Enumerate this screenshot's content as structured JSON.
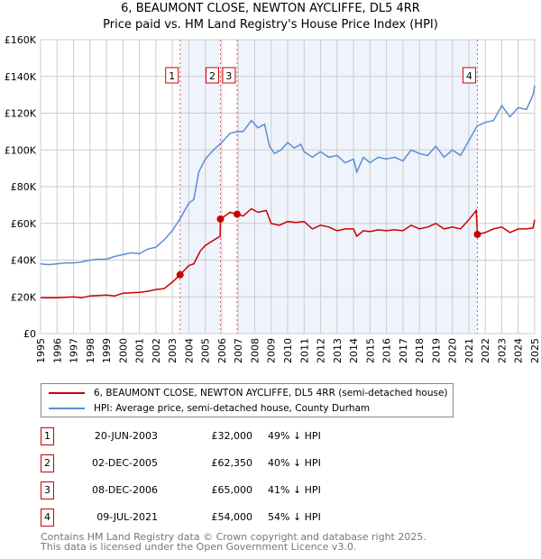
{
  "title_line1": "6, BEAUMONT CLOSE, NEWTON AYCLIFFE, DL5 4RR",
  "title_line2": "Price paid vs. HM Land Registry's House Price Index (HPI)",
  "colors": {
    "property": "#cc0000",
    "hpi": "#5b8fd1",
    "shade": "#eef3fc",
    "grid": "#cccccc"
  },
  "chart_data": {
    "type": "line",
    "title": "Price paid vs. HM Land Registry's House Price Index (HPI)",
    "xlim": [
      1995,
      2025
    ],
    "ylim": [
      0,
      160000
    ],
    "y_ticks": [
      0,
      20000,
      40000,
      60000,
      80000,
      100000,
      120000,
      140000,
      160000
    ],
    "y_tick_labels": [
      "£0",
      "£20K",
      "£40K",
      "£60K",
      "£80K",
      "£100K",
      "£120K",
      "£140K",
      "£160K"
    ],
    "x_ticks": [
      1995,
      1996,
      1997,
      1998,
      1999,
      2000,
      2001,
      2002,
      2003,
      2004,
      2005,
      2006,
      2007,
      2008,
      2009,
      2010,
      2011,
      2012,
      2013,
      2014,
      2015,
      2016,
      2017,
      2018,
      2019,
      2020,
      2021,
      2022,
      2023,
      2024,
      2025
    ],
    "x_tick_labels": [
      "1995",
      "1996",
      "1997",
      "1998",
      "1999",
      "2000",
      "2001",
      "2002",
      "2003",
      "2004",
      "2005",
      "2006",
      "2007",
      "2008",
      "2009",
      "2010",
      "2011",
      "2012",
      "2013",
      "2014",
      "2015",
      "2016",
      "2017",
      "2018",
      "2019",
      "2020",
      "2021",
      "2022",
      "2023",
      "2024",
      "2025"
    ],
    "grid": true,
    "legend_placement": "below",
    "series": [
      {
        "name": "6, BEAUMONT CLOSE, NEWTON AYCLIFFE, DL5 4RR (semi-detached house)",
        "x": [
          1995,
          1996,
          1997,
          1997.5,
          1998,
          1999,
          1999.5,
          2000,
          2001,
          2001.5,
          2002,
          2002.5,
          2003,
          2003.47,
          2004,
          2004.3,
          2004.7,
          2005,
          2005.9,
          2005.92,
          2006.5,
          2006.93,
          2007.3,
          2007.8,
          2008.2,
          2008.7,
          2009,
          2009.5,
          2010,
          2010.5,
          2011,
          2011.5,
          2012,
          2012.5,
          2013,
          2013.5,
          2014,
          2014.2,
          2014.6,
          2015,
          2015.5,
          2016,
          2016.5,
          2017,
          2017.5,
          2018,
          2018.5,
          2019,
          2019.5,
          2020,
          2020.5,
          2021,
          2021.45,
          2021.52,
          2022,
          2022.5,
          2023,
          2023.5,
          2024,
          2024.5,
          2024.9,
          2025
        ],
        "y": [
          19500,
          19500,
          20000,
          19500,
          20500,
          21000,
          20500,
          22000,
          22500,
          23000,
          24000,
          24500,
          28000,
          32000,
          37000,
          38000,
          45000,
          48000,
          53000,
          62350,
          66000,
          65000,
          64000,
          68000,
          66000,
          67000,
          60000,
          59000,
          61000,
          60500,
          61000,
          57000,
          59000,
          58000,
          56000,
          57000,
          57000,
          53000,
          56000,
          55500,
          56500,
          56000,
          56500,
          56000,
          59000,
          57000,
          58000,
          60000,
          57000,
          58000,
          57000,
          62000,
          67000,
          54000,
          55000,
          57000,
          58000,
          55000,
          57000,
          57000,
          57500,
          62000
        ]
      },
      {
        "name": "HPI: Average price, semi-detached house, County Durham",
        "x": [
          1995,
          1995.5,
          1996,
          1996.5,
          1997,
          1997.5,
          1998,
          1998.5,
          1999,
          1999.5,
          2000,
          2000.5,
          2001,
          2001.5,
          2002,
          2002.5,
          2003,
          2003.5,
          2004,
          2004.3,
          2004.6,
          2005,
          2005.5,
          2006,
          2006.5,
          2007,
          2007.3,
          2007.8,
          2008.2,
          2008.6,
          2008.9,
          2009.2,
          2009.6,
          2010,
          2010.4,
          2010.8,
          2011,
          2011.5,
          2012,
          2012.5,
          2013,
          2013.5,
          2014,
          2014.2,
          2014.6,
          2015,
          2015.5,
          2016,
          2016.5,
          2017,
          2017.5,
          2018,
          2018.5,
          2019,
          2019.5,
          2020,
          2020.5,
          2021,
          2021.5,
          2022,
          2022.5,
          2023,
          2023.5,
          2024,
          2024.5,
          2024.9,
          2025
        ],
        "y": [
          38000,
          37500,
          38000,
          38500,
          38500,
          39000,
          40000,
          40500,
          40500,
          42000,
          43000,
          44000,
          43500,
          46000,
          47000,
          51000,
          56000,
          63000,
          71000,
          73000,
          88000,
          95000,
          100000,
          104000,
          109000,
          110000,
          110000,
          116000,
          112000,
          114000,
          102000,
          98000,
          100000,
          104000,
          101000,
          103000,
          99000,
          96000,
          99000,
          96000,
          97000,
          93000,
          95000,
          88000,
          96000,
          93000,
          96000,
          95000,
          96000,
          94000,
          100000,
          98000,
          97000,
          102000,
          96000,
          100000,
          97000,
          105000,
          113000,
          115000,
          116000,
          124000,
          118000,
          123000,
          122000,
          130000,
          135000
        ]
      }
    ],
    "sales": [
      {
        "label": "1",
        "x": 2003.47,
        "y": 32000
      },
      {
        "label": "2",
        "x": 2005.92,
        "y": 62350
      },
      {
        "label": "3",
        "x": 2006.93,
        "y": 65000
      },
      {
        "label": "4",
        "x": 2021.52,
        "y": 54000
      }
    ],
    "shaded_ranges": [
      [
        2003.47,
        2005.92
      ],
      [
        2006.93,
        2021.52
      ]
    ]
  },
  "legend": [
    {
      "label": "6, BEAUMONT CLOSE, NEWTON AYCLIFFE, DL5 4RR (semi-detached house)"
    },
    {
      "label": "HPI: Average price, semi-detached house, County Durham"
    }
  ],
  "transactions": [
    {
      "num": "1",
      "date": "20-JUN-2003",
      "price": "£32,000",
      "hpi": "49% ↓ HPI"
    },
    {
      "num": "2",
      "date": "02-DEC-2005",
      "price": "£62,350",
      "hpi": "40% ↓ HPI"
    },
    {
      "num": "3",
      "date": "08-DEC-2006",
      "price": "£65,000",
      "hpi": "41% ↓ HPI"
    },
    {
      "num": "4",
      "date": "09-JUL-2021",
      "price": "£54,000",
      "hpi": "54% ↓ HPI"
    }
  ],
  "footer_line1": "Contains HM Land Registry data © Crown copyright and database right 2025.",
  "footer_line2": "This data is licensed under the Open Government Licence v3.0."
}
